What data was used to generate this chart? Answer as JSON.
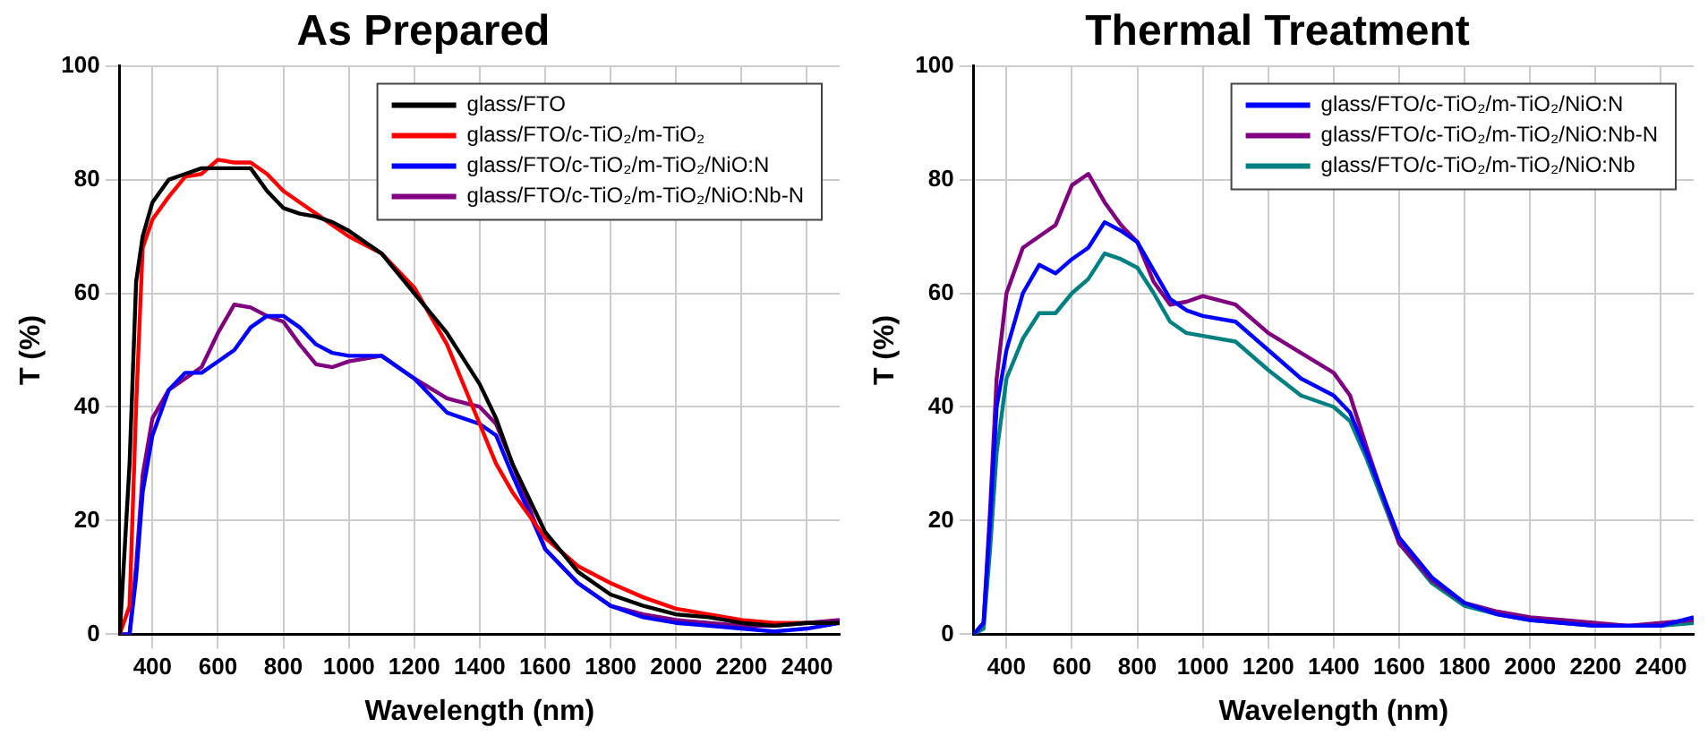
{
  "chart_data": [
    {
      "type": "line",
      "title": "As Prepared",
      "xlabel": "Wavelength (nm)",
      "ylabel": "T (%)",
      "xlim": [
        300,
        2500
      ],
      "xticks": [
        400,
        600,
        800,
        1000,
        1200,
        1400,
        1600,
        1800,
        2000,
        2200,
        2400
      ],
      "ylim": [
        0,
        100
      ],
      "yticks": [
        0,
        20,
        40,
        60,
        80,
        100
      ],
      "grid": true,
      "legend": "top right",
      "marker": "none",
      "line_style": "solid",
      "x": [
        300,
        330,
        350,
        370,
        400,
        450,
        500,
        550,
        600,
        650,
        700,
        750,
        800,
        850,
        900,
        950,
        1000,
        1100,
        1200,
        1300,
        1400,
        1450,
        1500,
        1600,
        1700,
        1800,
        1900,
        2000,
        2100,
        2200,
        2300,
        2400,
        2500
      ],
      "series": [
        {
          "name": "glass/FTO",
          "color": "#000000",
          "values": [
            0,
            30,
            62,
            70,
            76,
            80,
            81,
            82,
            82,
            82,
            82,
            78,
            75,
            74,
            73.5,
            72.5,
            71,
            67,
            60,
            53,
            44,
            38,
            30,
            18,
            11,
            7,
            5,
            3.5,
            3,
            2,
            1.5,
            2,
            2
          ]
        },
        {
          "name": "glass/FTO/c-TiO₂/m-TiO₂",
          "color": "#ff0000",
          "values": [
            0,
            5,
            40,
            68,
            73,
            77,
            80.5,
            81,
            83.5,
            83,
            83,
            81,
            78,
            76,
            74,
            72,
            70,
            67,
            61,
            51,
            37,
            30,
            25,
            17,
            12,
            9,
            6.5,
            4.5,
            3.5,
            2.5,
            2,
            2,
            null
          ]
        },
        {
          "name": "glass/FTO/c-TiO₂/m-TiO₂/NiO:N",
          "color": "#0000ff",
          "values": [
            0,
            0,
            10,
            25,
            35,
            43,
            46,
            46,
            48,
            50,
            54,
            56,
            56,
            54,
            51,
            49.5,
            49,
            49,
            45,
            39,
            37,
            35,
            28,
            15,
            9,
            5,
            3,
            2,
            1.5,
            1,
            0.5,
            1,
            2
          ]
        },
        {
          "name": "glass/FTO/c-TiO₂/m-TiO₂/NiO:Nb-N",
          "color": "#800080",
          "values": [
            0,
            0,
            12,
            28,
            38,
            43,
            45,
            47,
            53,
            58,
            57.5,
            56,
            55,
            51,
            47.5,
            47,
            48,
            49,
            45,
            41.5,
            40,
            37,
            30,
            15,
            9,
            5,
            3.5,
            2.5,
            2,
            1.5,
            1.5,
            2,
            2.5
          ]
        }
      ]
    },
    {
      "type": "line",
      "title": "Thermal Treatment",
      "xlabel": "Wavelength (nm)",
      "ylabel": "T (%)",
      "xlim": [
        300,
        2500
      ],
      "xticks": [
        400,
        600,
        800,
        1000,
        1200,
        1400,
        1600,
        1800,
        2000,
        2200,
        2400
      ],
      "ylim": [
        0,
        100
      ],
      "yticks": [
        0,
        20,
        40,
        60,
        80,
        100
      ],
      "grid": true,
      "legend": "top right",
      "marker": "none",
      "line_style": "solid",
      "x": [
        300,
        330,
        350,
        370,
        400,
        450,
        500,
        550,
        600,
        650,
        700,
        750,
        800,
        850,
        900,
        950,
        1000,
        1100,
        1200,
        1300,
        1400,
        1450,
        1500,
        1600,
        1700,
        1800,
        1900,
        2000,
        2100,
        2200,
        2300,
        2400,
        2500
      ],
      "series": [
        {
          "name": "glass/FTO/c-TiO₂/m-TiO₂/NiO:N",
          "color": "#0000ff",
          "values": [
            0,
            2,
            20,
            40,
            50,
            60,
            65,
            63.5,
            66,
            68,
            72.5,
            71,
            69,
            64,
            59,
            57,
            56,
            55,
            50,
            45,
            42,
            39,
            32,
            17,
            10,
            5.5,
            3.5,
            2.5,
            2,
            1.5,
            1.5,
            1.5,
            3
          ]
        },
        {
          "name": "glass/FTO/c-TiO₂/m-TiO₂/NiO:Nb-N",
          "color": "#800080",
          "values": [
            0,
            2,
            22,
            45,
            60,
            68,
            70,
            72,
            79,
            81,
            76,
            72,
            69,
            62,
            58,
            58.5,
            59.5,
            58,
            53,
            49.5,
            46,
            42,
            33,
            16,
            9.5,
            5.5,
            4,
            3,
            2.5,
            2,
            1.5,
            2,
            2.5
          ]
        },
        {
          "name": "glass/FTO/c-TiO₂/m-TiO₂/NiO:Nb",
          "color": "#008080",
          "values": [
            0,
            1,
            15,
            32,
            45,
            52,
            56.5,
            56.5,
            60,
            62.5,
            67,
            66,
            64.5,
            60,
            55,
            53,
            52.5,
            51.5,
            46.5,
            42,
            40,
            37.5,
            31,
            16,
            9,
            5,
            3.5,
            2.5,
            2,
            1.5,
            1.5,
            1.5,
            2
          ]
        }
      ]
    }
  ]
}
